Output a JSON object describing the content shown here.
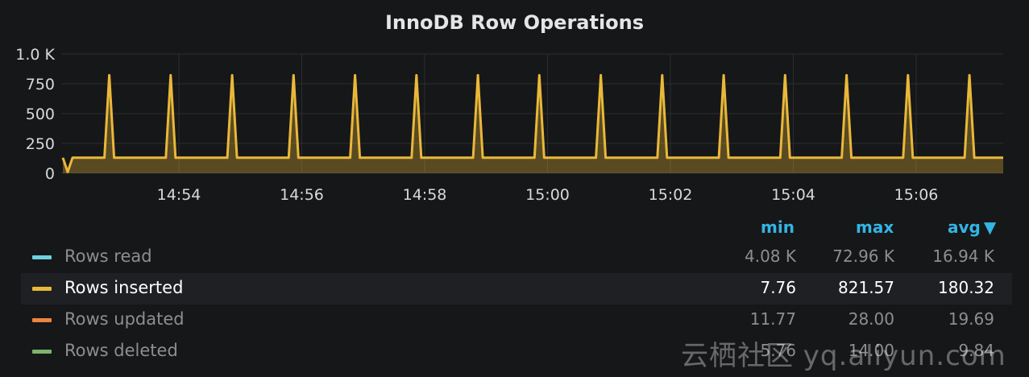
{
  "panel": {
    "title": "InnoDB Row Operations"
  },
  "chart_data": {
    "type": "line",
    "title": "InnoDB Row Operations",
    "ylim": [
      0,
      1000
    ],
    "y_ticks": [
      "0",
      "250",
      "500",
      "750",
      "1.0 K"
    ],
    "y_tick_values": [
      0,
      250,
      500,
      750,
      1000
    ],
    "x_tick_labels": [
      "14:54",
      "14:56",
      "14:58",
      "15:00",
      "15:02",
      "15:04",
      "15:06"
    ],
    "x_range": [
      "14:52:10",
      "14:07:30"
    ],
    "grid": true,
    "series": [
      {
        "name": "Rows inserted",
        "color": "#eab839",
        "baseline": 130,
        "spike_value": 821.57,
        "spike_times": [
          "14:52:52",
          "14:53:52",
          "14:54:52",
          "14:55:52",
          "14:56:52",
          "14:57:52",
          "14:58:52",
          "14:59:52",
          "15:00:52",
          "15:01:52",
          "15:02:52",
          "15:03:52",
          "15:04:52",
          "15:05:52",
          "15:06:52"
        ],
        "start_values": [
          130,
          10,
          130
        ]
      }
    ]
  },
  "legend": {
    "headers": {
      "min": "min",
      "max": "max",
      "avg": "avg"
    },
    "rows": [
      {
        "name": "Rows read",
        "color": "#6ed0e0",
        "min": "4.08 K",
        "max": "72.96 K",
        "avg": "16.94 K"
      },
      {
        "name": "Rows inserted",
        "color": "#eab839",
        "min": "7.76",
        "max": "821.57",
        "avg": "180.32"
      },
      {
        "name": "Rows updated",
        "color": "#ef843c",
        "min": "11.77",
        "max": "28.00",
        "avg": "19.69"
      },
      {
        "name": "Rows deleted",
        "color": "#7eb26d",
        "min": "5.76",
        "max": "14.00",
        "avg": "9.84"
      }
    ]
  },
  "watermark": {
    "text": "云栖社区 yq.aliyun.com"
  }
}
